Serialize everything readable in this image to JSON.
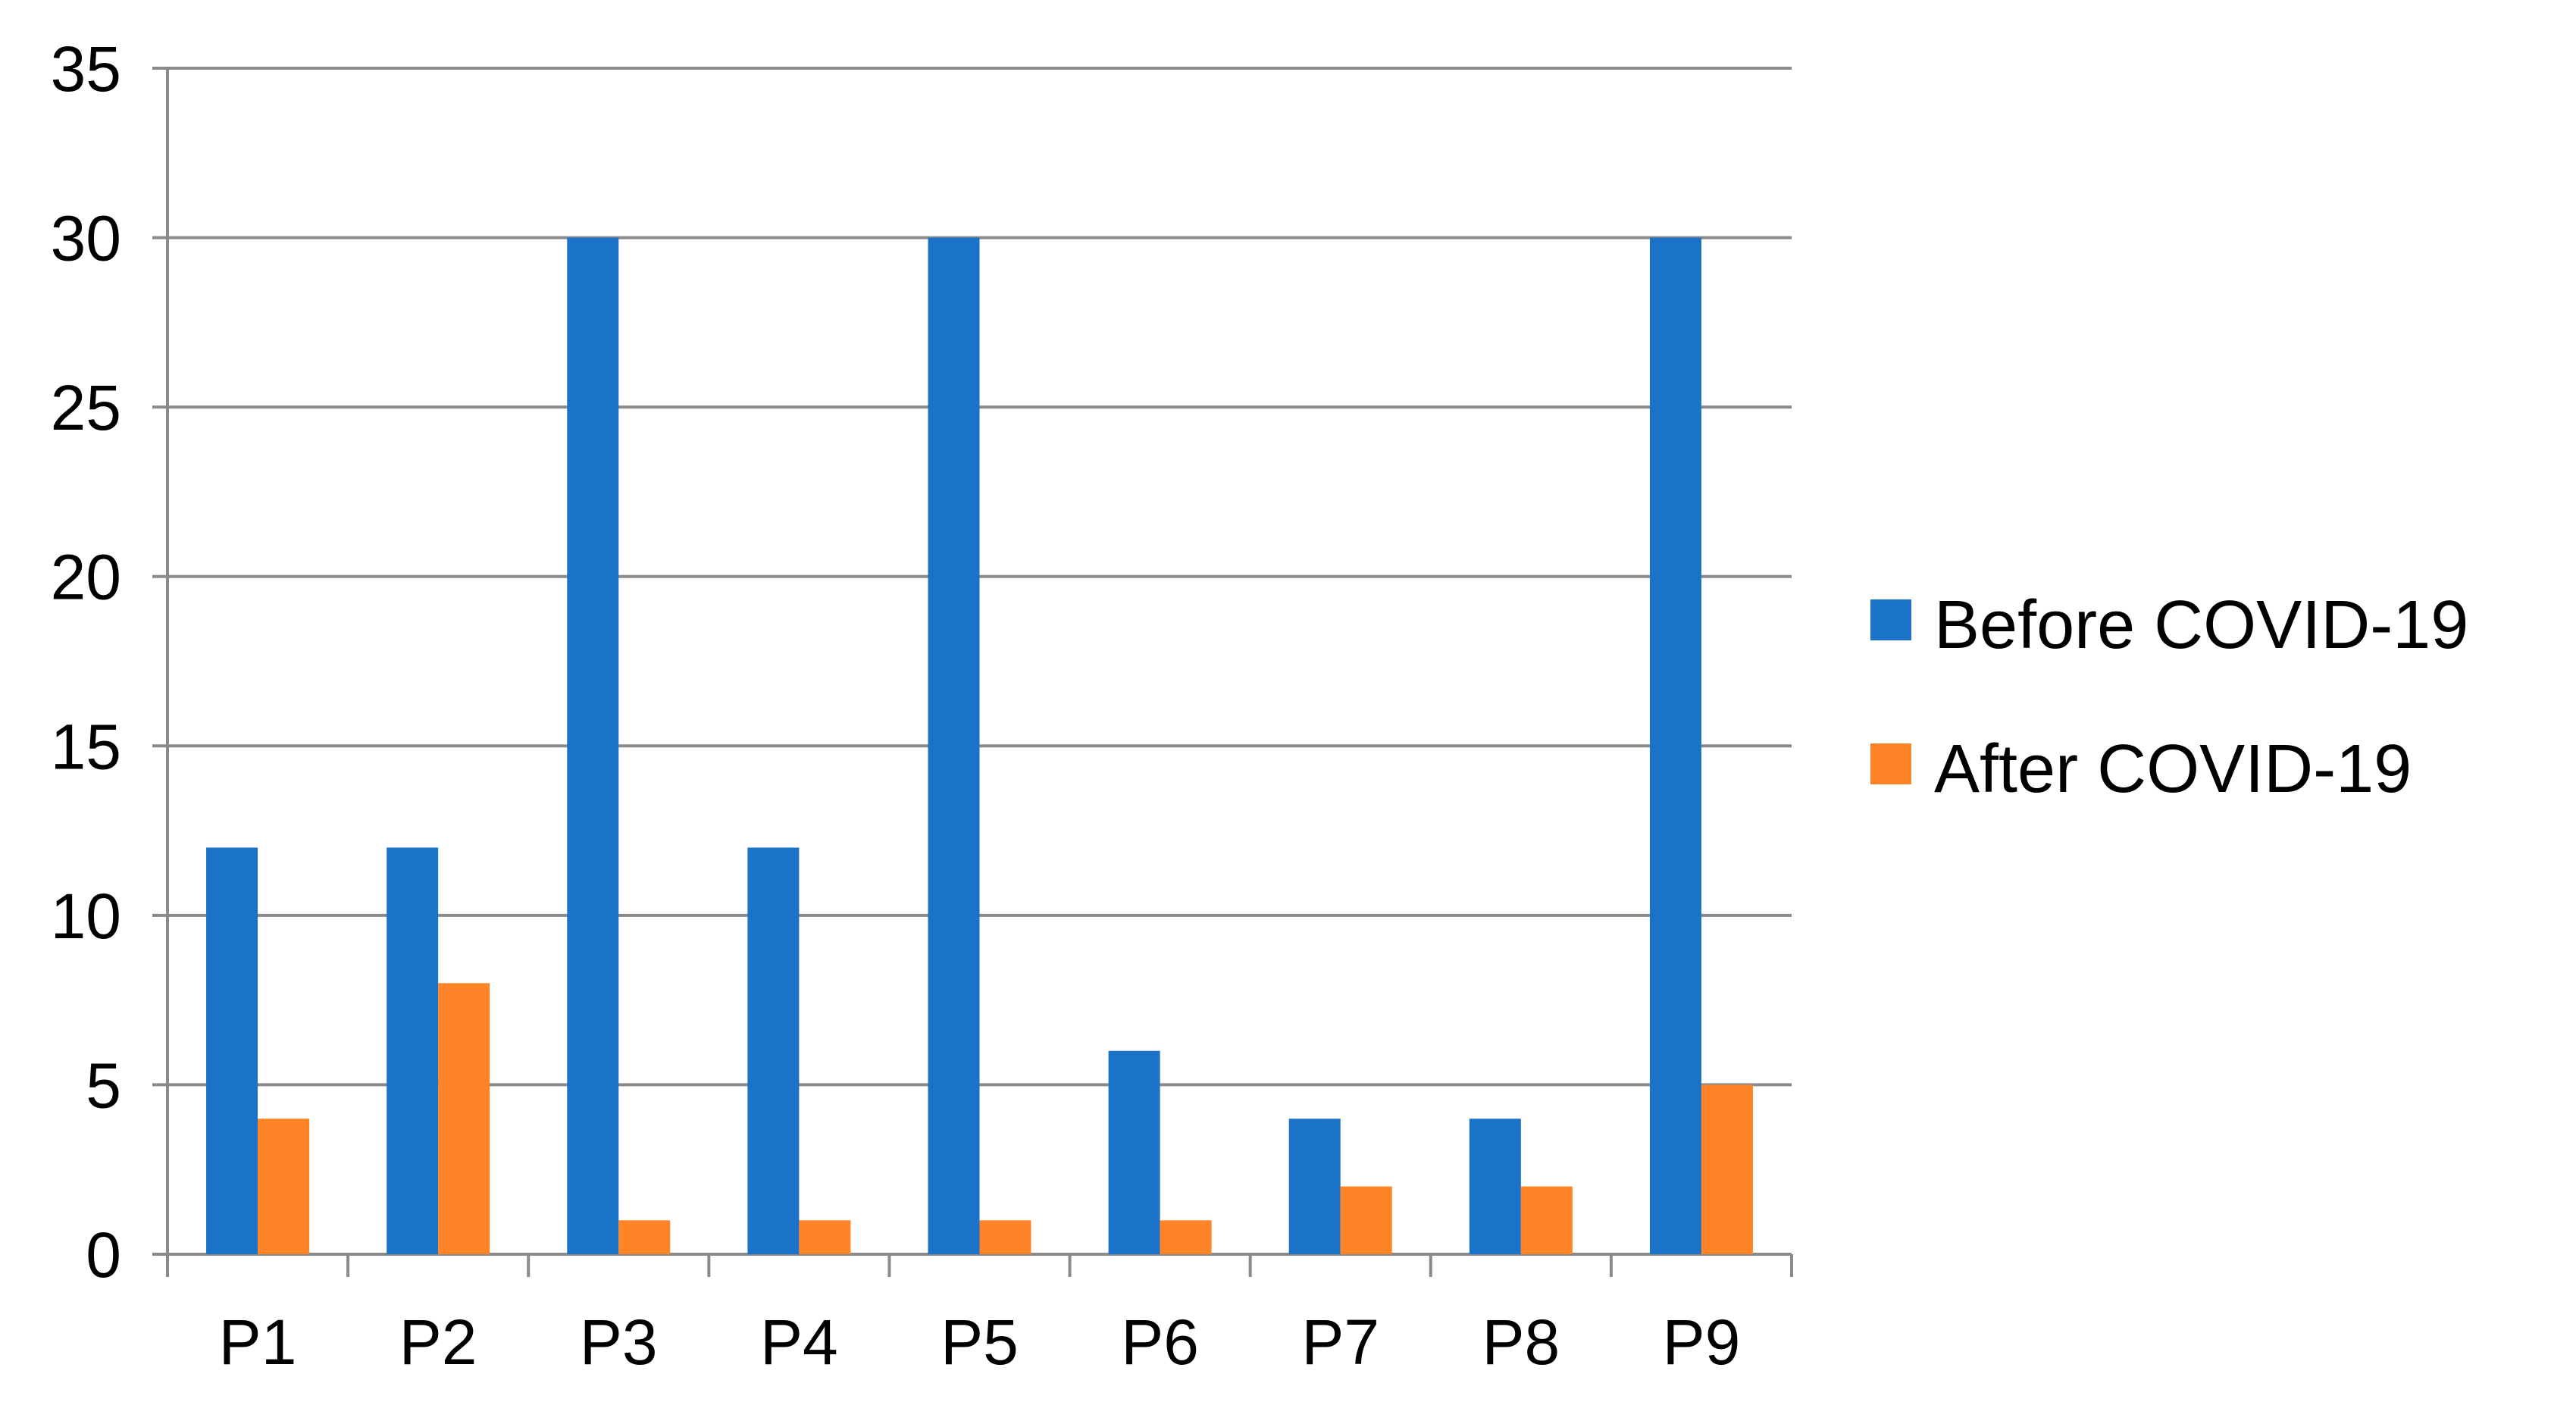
{
  "chart_data": {
    "type": "bar",
    "title": "",
    "xlabel": "",
    "ylabel": "",
    "categories": [
      "P1",
      "P2",
      "P3",
      "P4",
      "P5",
      "P6",
      "P7",
      "P8",
      "P9"
    ],
    "series": [
      {
        "name": "Before COVID-19",
        "color": "#1a73c8",
        "values": [
          12,
          12,
          30,
          12,
          30,
          6,
          4,
          4,
          30
        ]
      },
      {
        "name": "After COVID-19",
        "color": "#ff8427",
        "values": [
          4,
          8,
          1,
          1,
          1,
          1,
          2,
          2,
          5
        ]
      }
    ],
    "ylim": [
      0,
      35
    ],
    "yticks": [
      "0",
      "5",
      "10",
      "15",
      "20",
      "25",
      "30",
      "35"
    ],
    "grid": true,
    "legend_position": "right"
  }
}
